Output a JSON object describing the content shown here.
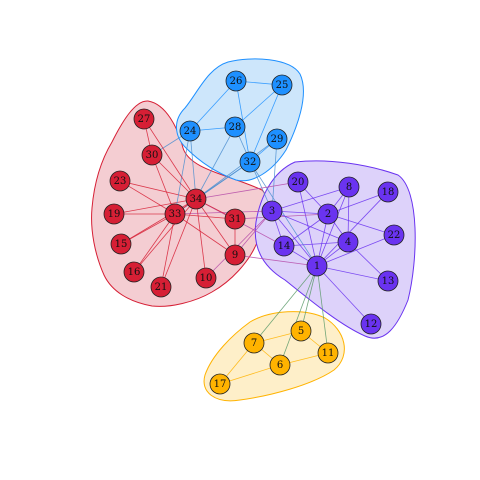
{
  "colors": {
    "red": "#d61f35",
    "blue": "#1e90ff",
    "purple": "#6a33f0",
    "orange": "#ffb300",
    "hull_red_fill": "#f4cdd2",
    "hull_red_stroke": "#d61f35",
    "hull_blue_fill": "#cde6fb",
    "hull_blue_stroke": "#1e90ff",
    "hull_purple_fill": "#ddd2fa",
    "hull_purple_stroke": "#6a33f0",
    "hull_orange_fill": "#feefc9",
    "hull_orange_stroke": "#ffb300"
  },
  "communities": [
    {
      "id": "red",
      "nodes": [
        "9",
        "10",
        "15",
        "16",
        "19",
        "21",
        "23",
        "27",
        "30",
        "31",
        "33",
        "34"
      ]
    },
    {
      "id": "blue",
      "nodes": [
        "24",
        "25",
        "26",
        "28",
        "29",
        "32"
      ]
    },
    {
      "id": "purple",
      "nodes": [
        "1",
        "2",
        "3",
        "4",
        "8",
        "12",
        "13",
        "14",
        "18",
        "20",
        "22"
      ]
    },
    {
      "id": "orange",
      "nodes": [
        "5",
        "6",
        "7",
        "11",
        "17"
      ]
    }
  ],
  "nodes": [
    {
      "id": "1",
      "label": "1",
      "community": "purple"
    },
    {
      "id": "2",
      "label": "2",
      "community": "purple"
    },
    {
      "id": "3",
      "label": "3",
      "community": "purple"
    },
    {
      "id": "4",
      "label": "4",
      "community": "purple"
    },
    {
      "id": "5",
      "label": "5",
      "community": "orange"
    },
    {
      "id": "6",
      "label": "6",
      "community": "orange"
    },
    {
      "id": "7",
      "label": "7",
      "community": "orange"
    },
    {
      "id": "8",
      "label": "8",
      "community": "purple"
    },
    {
      "id": "9",
      "label": "9",
      "community": "red"
    },
    {
      "id": "10",
      "label": "10",
      "community": "red"
    },
    {
      "id": "11",
      "label": "11",
      "community": "orange"
    },
    {
      "id": "12",
      "label": "12",
      "community": "purple"
    },
    {
      "id": "13",
      "label": "13",
      "community": "purple"
    },
    {
      "id": "14",
      "label": "14",
      "community": "purple"
    },
    {
      "id": "15",
      "label": "15",
      "community": "red"
    },
    {
      "id": "16",
      "label": "16",
      "community": "red"
    },
    {
      "id": "17",
      "label": "17",
      "community": "orange"
    },
    {
      "id": "18",
      "label": "18",
      "community": "purple"
    },
    {
      "id": "19",
      "label": "19",
      "community": "red"
    },
    {
      "id": "20",
      "label": "20",
      "community": "purple"
    },
    {
      "id": "21",
      "label": "21",
      "community": "red"
    },
    {
      "id": "22",
      "label": "22",
      "community": "purple"
    },
    {
      "id": "23",
      "label": "23",
      "community": "red"
    },
    {
      "id": "24",
      "label": "24",
      "community": "blue"
    },
    {
      "id": "25",
      "label": "25",
      "community": "blue"
    },
    {
      "id": "26",
      "label": "26",
      "community": "blue"
    },
    {
      "id": "27",
      "label": "27",
      "community": "red"
    },
    {
      "id": "28",
      "label": "28",
      "community": "blue"
    },
    {
      "id": "29",
      "label": "29",
      "community": "blue"
    },
    {
      "id": "30",
      "label": "30",
      "community": "red"
    },
    {
      "id": "31",
      "label": "31",
      "community": "red"
    },
    {
      "id": "32",
      "label": "32",
      "community": "blue"
    },
    {
      "id": "33",
      "label": "33",
      "community": "red"
    },
    {
      "id": "34",
      "label": "34",
      "community": "red"
    }
  ],
  "edges": [
    [
      "1",
      "2"
    ],
    [
      "1",
      "3"
    ],
    [
      "1",
      "4"
    ],
    [
      "1",
      "5"
    ],
    [
      "1",
      "6"
    ],
    [
      "1",
      "7"
    ],
    [
      "1",
      "8"
    ],
    [
      "1",
      "9"
    ],
    [
      "1",
      "11"
    ],
    [
      "1",
      "12"
    ],
    [
      "1",
      "13"
    ],
    [
      "1",
      "14"
    ],
    [
      "1",
      "18"
    ],
    [
      "1",
      "20"
    ],
    [
      "1",
      "22"
    ],
    [
      "1",
      "32"
    ],
    [
      "2",
      "3"
    ],
    [
      "2",
      "4"
    ],
    [
      "2",
      "8"
    ],
    [
      "2",
      "14"
    ],
    [
      "2",
      "18"
    ],
    [
      "2",
      "20"
    ],
    [
      "2",
      "22"
    ],
    [
      "2",
      "31"
    ],
    [
      "3",
      "4"
    ],
    [
      "3",
      "8"
    ],
    [
      "3",
      "9"
    ],
    [
      "3",
      "10"
    ],
    [
      "3",
      "14"
    ],
    [
      "3",
      "28"
    ],
    [
      "3",
      "29"
    ],
    [
      "3",
      "33"
    ],
    [
      "4",
      "8"
    ],
    [
      "4",
      "13"
    ],
    [
      "4",
      "14"
    ],
    [
      "5",
      "7"
    ],
    [
      "5",
      "11"
    ],
    [
      "6",
      "7"
    ],
    [
      "6",
      "11"
    ],
    [
      "6",
      "17"
    ],
    [
      "7",
      "17"
    ],
    [
      "9",
      "31"
    ],
    [
      "9",
      "33"
    ],
    [
      "9",
      "34"
    ],
    [
      "10",
      "34"
    ],
    [
      "14",
      "34"
    ],
    [
      "15",
      "33"
    ],
    [
      "15",
      "34"
    ],
    [
      "16",
      "33"
    ],
    [
      "16",
      "34"
    ],
    [
      "19",
      "33"
    ],
    [
      "19",
      "34"
    ],
    [
      "20",
      "34"
    ],
    [
      "21",
      "33"
    ],
    [
      "21",
      "34"
    ],
    [
      "23",
      "33"
    ],
    [
      "23",
      "34"
    ],
    [
      "24",
      "26"
    ],
    [
      "24",
      "28"
    ],
    [
      "24",
      "30"
    ],
    [
      "24",
      "33"
    ],
    [
      "24",
      "34"
    ],
    [
      "25",
      "26"
    ],
    [
      "25",
      "28"
    ],
    [
      "25",
      "32"
    ],
    [
      "26",
      "32"
    ],
    [
      "27",
      "30"
    ],
    [
      "27",
      "34"
    ],
    [
      "28",
      "34"
    ],
    [
      "29",
      "32"
    ],
    [
      "29",
      "34"
    ],
    [
      "30",
      "33"
    ],
    [
      "30",
      "34"
    ],
    [
      "31",
      "33"
    ],
    [
      "31",
      "34"
    ],
    [
      "32",
      "33"
    ],
    [
      "32",
      "34"
    ],
    [
      "33",
      "34"
    ]
  ]
}
